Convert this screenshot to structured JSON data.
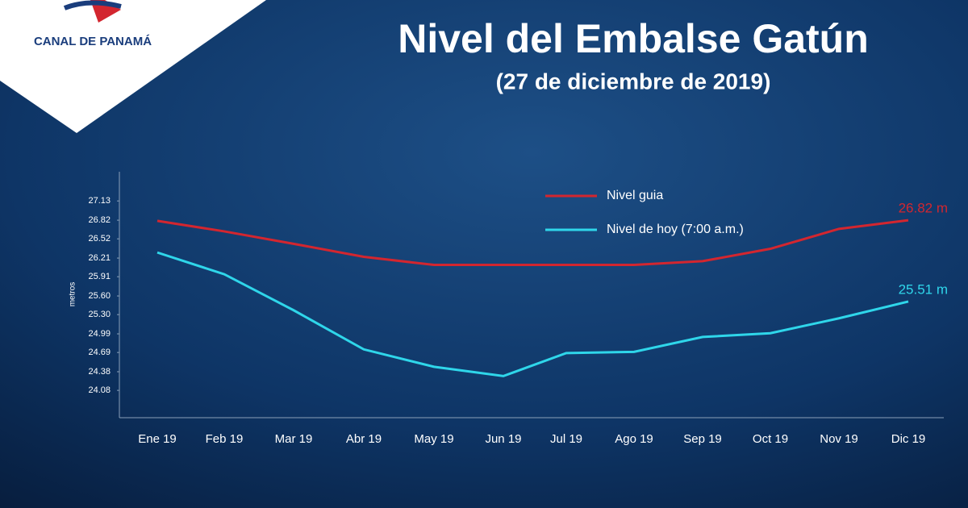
{
  "chart_data": {
    "type": "line",
    "logo": "CANAL DE PANAMÁ",
    "title": "Nivel del Embalse Gatún",
    "subtitle": "(27 de diciembre de 2019)",
    "y_label": "metros",
    "categories": [
      "Ene 19",
      "Feb 19",
      "Mar 19",
      "Abr 19",
      "May 19",
      "Jun 19",
      "Jul 19",
      "Ago 19",
      "Sep 19",
      "Oct 19",
      "Nov 19",
      "Dic 19"
    ],
    "series": [
      {
        "name": "Nivel guia",
        "color": "#d3262f",
        "values": [
          26.81,
          26.64,
          26.44,
          26.23,
          26.1,
          26.1,
          26.1,
          26.1,
          26.16,
          26.36,
          26.68,
          26.82
        ],
        "value_labels": [
          null,
          null,
          null,
          null,
          null,
          null,
          null,
          null,
          null,
          null,
          null,
          "26.82 m"
        ]
      },
      {
        "name": "Nivel de hoy (7:00 a.m.)",
        "color": "#2fd6ea",
        "values": [
          26.3,
          25.95,
          25.37,
          24.74,
          24.46,
          24.31,
          24.68,
          24.7,
          24.94,
          25.0,
          25.24,
          25.51
        ],
        "value_labels": [
          null,
          null,
          null,
          null,
          null,
          null,
          null,
          null,
          null,
          null,
          null,
          "25.51 m"
        ]
      }
    ],
    "ylim": [
      23.64,
      27.6
    ],
    "yticks": [
      27.13,
      26.82,
      26.52,
      26.21,
      25.91,
      {
        "value": 25.6,
        "label": "25.60"
      },
      {
        "value": 25.3,
        "label": "25.30"
      },
      24.99,
      24.69,
      24.38,
      24.08
    ],
    "grid": false
  }
}
